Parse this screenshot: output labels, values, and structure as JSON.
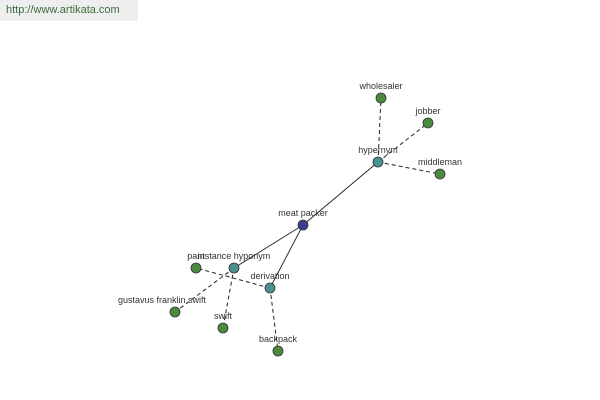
{
  "header": {
    "url": "http://www.artikata.com"
  },
  "nodes": [
    {
      "label": "meat packer"
    },
    {
      "label": "hypernym"
    },
    {
      "label": "instance hyponym"
    },
    {
      "label": "derivation"
    },
    {
      "label": "wholesaler"
    },
    {
      "label": "jobber"
    },
    {
      "label": "middleman"
    },
    {
      "label": "gustavus franklin swift"
    },
    {
      "label": "swift"
    },
    {
      "label": "pant"
    },
    {
      "label": "backpack"
    }
  ]
}
